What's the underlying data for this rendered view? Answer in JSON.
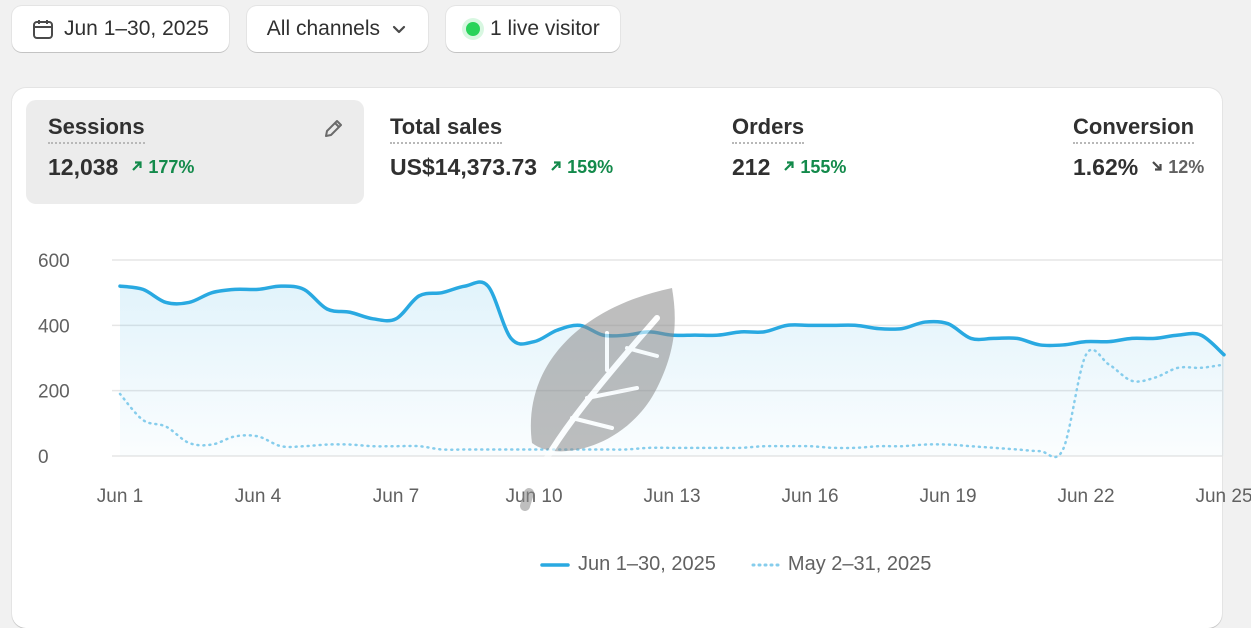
{
  "toolbar": {
    "date_range": "Jun 1–30, 2025",
    "channels": "All channels",
    "live": "1 live visitor"
  },
  "metrics": [
    {
      "label": "Sessions",
      "value": "12,038",
      "delta": "177%",
      "direction": "up"
    },
    {
      "label": "Total sales",
      "value": "US$14,373.73",
      "delta": "159%",
      "direction": "up"
    },
    {
      "label": "Orders",
      "value": "212",
      "delta": "155%",
      "direction": "up"
    },
    {
      "label": "Conversion",
      "value": "1.62%",
      "delta": "12%",
      "direction": "down"
    }
  ],
  "colors": {
    "current": "#29a9e1",
    "previous": "#86cdec",
    "delta_up": "#138a4b",
    "live": "#29d35a"
  },
  "chart_data": {
    "type": "line",
    "x_ticks": [
      "Jun 1",
      "Jun 4",
      "Jun 7",
      "Jun 10",
      "Jun 13",
      "Jun 16",
      "Jun 19",
      "Jun 22",
      "Jun 25"
    ],
    "y_ticks": [
      "600",
      "400",
      "200",
      "0"
    ],
    "ylim": [
      0,
      600
    ],
    "series": [
      {
        "name": "Jun 1–30, 2025",
        "style": "solid",
        "x": [
          1,
          1.5,
          2,
          2.5,
          3,
          3.5,
          4,
          4.5,
          5,
          5.5,
          6,
          6.5,
          7,
          7.5,
          8,
          8.5,
          9,
          9.5,
          10,
          10.5,
          11,
          11.5,
          12,
          12.5,
          13,
          13.5,
          14,
          14.5,
          15,
          15.5,
          16,
          16.5,
          17,
          17.5,
          18,
          18.5,
          19,
          19.5,
          20,
          20.5,
          21,
          21.5,
          22,
          22.5,
          23,
          23.5,
          24,
          24.5,
          25
        ],
        "y": [
          520,
          510,
          470,
          470,
          500,
          510,
          510,
          520,
          510,
          450,
          440,
          420,
          420,
          490,
          500,
          520,
          520,
          360,
          350,
          385,
          400,
          370,
          370,
          380,
          370,
          370,
          370,
          380,
          380,
          400,
          400,
          400,
          400,
          390,
          390,
          410,
          405,
          360,
          360,
          360,
          340,
          340,
          350,
          350,
          360,
          360,
          370,
          370,
          310
        ]
      },
      {
        "name": "May 2–31, 2025",
        "style": "dotted",
        "x": [
          1,
          1.5,
          2,
          2.5,
          3,
          3.5,
          4,
          4.5,
          5,
          5.5,
          6,
          6.5,
          7,
          7.5,
          8,
          8.5,
          9,
          9.5,
          10,
          10.5,
          11,
          11.5,
          12,
          12.5,
          13,
          13.5,
          14,
          14.5,
          15,
          15.5,
          16,
          16.5,
          17,
          17.5,
          18,
          18.5,
          19,
          19.5,
          20,
          20.5,
          21,
          21.5,
          22,
          22.5,
          23,
          23.5,
          24,
          24.5,
          25
        ],
        "y": [
          190,
          110,
          90,
          40,
          35,
          60,
          60,
          30,
          30,
          35,
          35,
          30,
          30,
          30,
          20,
          20,
          20,
          20,
          20,
          20,
          20,
          20,
          20,
          25,
          25,
          25,
          25,
          25,
          30,
          30,
          30,
          25,
          25,
          30,
          30,
          35,
          35,
          30,
          25,
          20,
          15,
          20,
          310,
          280,
          230,
          240,
          270,
          270,
          280
        ]
      }
    ]
  }
}
